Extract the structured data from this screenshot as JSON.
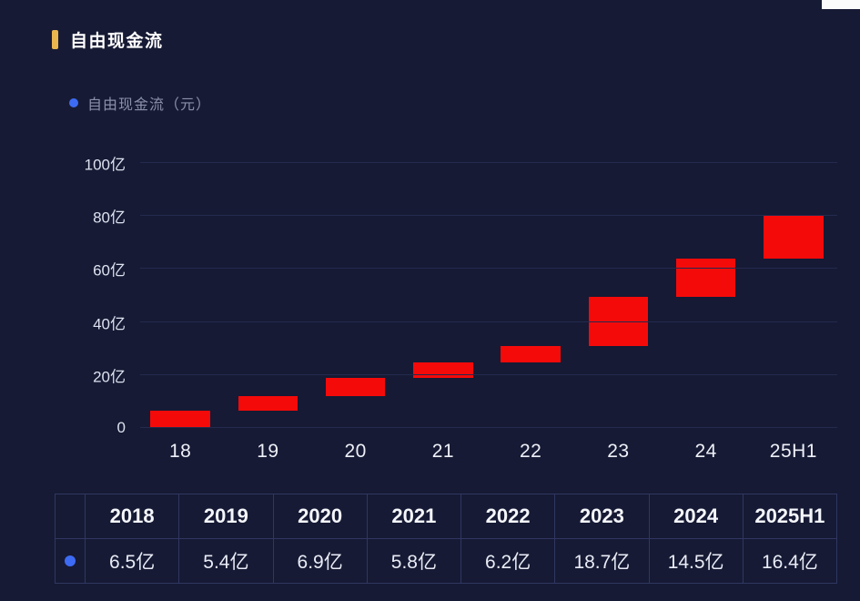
{
  "page": {
    "title": "自由现金流",
    "background": "#161a34",
    "accent_gold": "#e9b54d"
  },
  "legend": {
    "label": "自由现金流（元）",
    "dot_color": "#3d6bf3"
  },
  "chart_data": {
    "type": "bar",
    "subtype": "waterfall",
    "title": "自由现金流",
    "categories": [
      "18",
      "19",
      "20",
      "21",
      "22",
      "23",
      "24",
      "25H1"
    ],
    "values": [
      6.5,
      5.4,
      6.9,
      5.8,
      6.2,
      18.7,
      14.5,
      16.4
    ],
    "segment_start": [
      0,
      6.5,
      11.9,
      18.8,
      24.6,
      30.8,
      49.5,
      64.0
    ],
    "segment_end": [
      6.5,
      11.9,
      18.8,
      24.6,
      30.8,
      49.5,
      64.0,
      80.4
    ],
    "unit": "亿",
    "bar_color": "#f50a0a",
    "ylim": [
      0,
      100
    ],
    "yticks": [
      0,
      20,
      40,
      60,
      80,
      100
    ],
    "ytick_labels": [
      "0",
      "20亿",
      "40亿",
      "60亿",
      "80亿",
      "100亿"
    ],
    "grid": true,
    "legend_position": "top-left"
  },
  "table": {
    "headers": [
      "2018",
      "2019",
      "2020",
      "2021",
      "2022",
      "2023",
      "2024",
      "2025H1"
    ],
    "values": [
      "6.5亿",
      "5.4亿",
      "6.9亿",
      "5.8亿",
      "6.2亿",
      "18.7亿",
      "14.5亿",
      "16.4亿"
    ],
    "series_dot_color": "#3d6bf3"
  }
}
